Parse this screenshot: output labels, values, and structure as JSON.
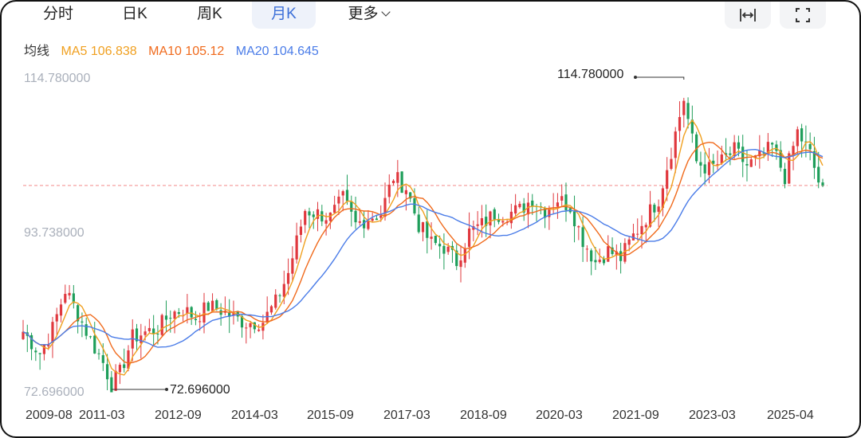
{
  "tabs": [
    {
      "label": "分时"
    },
    {
      "label": "日K"
    },
    {
      "label": "周K"
    },
    {
      "label": "月K",
      "active": true
    },
    {
      "label": "更多"
    }
  ],
  "tools": [
    {
      "icon": "fit-width-icon"
    },
    {
      "icon": "fullscreen-icon"
    }
  ],
  "legend": {
    "label": "均线",
    "ma5": "MA5 106.838",
    "ma10": "MA10 105.12",
    "ma20": "MA20 104.645"
  },
  "colors": {
    "up": "#e0383e",
    "down": "#1e9e5a",
    "ma5": "#f0a020",
    "ma10": "#f06a1c",
    "ma20": "#4a7ce8",
    "dash": "#f5a0a0",
    "active": "#3b6fd8"
  },
  "chart_data": {
    "type": "candlestick",
    "period": "monthly",
    "ylim": [
      72.696,
      114.78
    ],
    "y_ticks": [
      "114.780000",
      "93.738000",
      "72.696000"
    ],
    "x_ticks": [
      "2009-08",
      "2011-03",
      "2012-09",
      "2014-03",
      "2015-09",
      "2017-03",
      "2018-09",
      "2020-03",
      "2021-09",
      "2023-03",
      "2025-04"
    ],
    "max_label": "114.780000",
    "min_label": "72.696000",
    "current_close": 100.3,
    "anchors": [
      [
        "2009-08",
        80.6
      ],
      [
        "2009-12",
        77.7
      ],
      [
        "2010-03",
        81.0
      ],
      [
        "2010-06",
        86.2
      ],
      [
        "2010-09",
        83.0
      ],
      [
        "2010-12",
        79.5
      ],
      [
        "2011-03",
        76.4
      ],
      [
        "2011-05",
        73.5
      ],
      [
        "2011-07",
        75.0
      ],
      [
        "2011-10",
        79.8
      ],
      [
        "2012-01",
        80.5
      ],
      [
        "2012-04",
        81.0
      ],
      [
        "2012-07",
        83.0
      ],
      [
        "2012-10",
        83.6
      ],
      [
        "2013-01",
        82.5
      ],
      [
        "2013-04",
        84.0
      ],
      [
        "2013-07",
        83.5
      ],
      [
        "2013-10",
        82.5
      ],
      [
        "2014-01",
        81.8
      ],
      [
        "2014-05",
        82.0
      ],
      [
        "2014-08",
        84.5
      ],
      [
        "2014-11",
        88.5
      ],
      [
        "2015-03",
        97.0
      ],
      [
        "2015-06",
        96.5
      ],
      [
        "2015-09",
        96.0
      ],
      [
        "2015-12",
        98.5
      ],
      [
        "2016-03",
        95.0
      ],
      [
        "2016-06",
        96.0
      ],
      [
        "2016-09",
        96.5
      ],
      [
        "2016-12",
        101.5
      ],
      [
        "2017-03",
        100.0
      ],
      [
        "2017-06",
        95.0
      ],
      [
        "2017-09",
        92.5
      ],
      [
        "2017-12",
        92.0
      ],
      [
        "2018-03",
        90.0
      ],
      [
        "2018-06",
        94.0
      ],
      [
        "2018-09",
        95.0
      ],
      [
        "2018-12",
        96.5
      ],
      [
        "2019-03",
        96.5
      ],
      [
        "2019-06",
        97.0
      ],
      [
        "2019-09",
        98.5
      ],
      [
        "2019-12",
        97.0
      ],
      [
        "2020-03",
        98.5
      ],
      [
        "2020-06",
        97.5
      ],
      [
        "2020-09",
        93.0
      ],
      [
        "2020-12",
        90.0
      ],
      [
        "2021-03",
        91.5
      ],
      [
        "2021-06",
        90.5
      ],
      [
        "2021-09",
        93.5
      ],
      [
        "2021-12",
        96.0
      ],
      [
        "2022-03",
        98.5
      ],
      [
        "2022-06",
        105.0
      ],
      [
        "2022-09",
        112.0
      ],
      [
        "2022-12",
        103.5
      ],
      [
        "2023-03",
        102.5
      ],
      [
        "2023-06",
        103.5
      ],
      [
        "2023-09",
        105.0
      ],
      [
        "2023-12",
        103.0
      ],
      [
        "2024-03",
        104.0
      ],
      [
        "2024-06",
        105.5
      ],
      [
        "2024-09",
        101.5
      ],
      [
        "2024-12",
        107.5
      ],
      [
        "2025-03",
        104.5
      ],
      [
        "2025-06",
        99.0
      ]
    ]
  }
}
